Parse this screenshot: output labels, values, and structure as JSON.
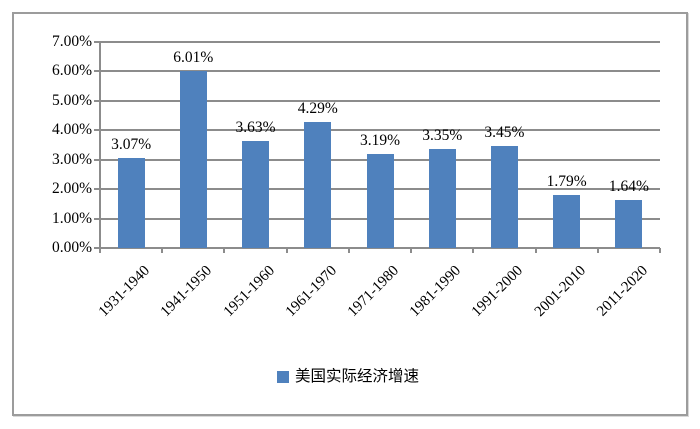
{
  "chart_data": {
    "type": "bar",
    "categories": [
      "1931-1940",
      "1941-1950",
      "1951-1960",
      "1961-1970",
      "1971-1980",
      "1981-1990",
      "1991-2000",
      "2001-2010",
      "2011-2020"
    ],
    "values": [
      3.07,
      6.01,
      3.63,
      4.29,
      3.19,
      3.35,
      3.45,
      1.79,
      1.64
    ],
    "data_labels": [
      "3.07%",
      "6.01%",
      "3.63%",
      "4.29%",
      "3.19%",
      "3.35%",
      "3.45%",
      "1.79%",
      "1.64%"
    ],
    "title": "",
    "xlabel": "",
    "ylabel": "",
    "ylim": [
      0,
      7
    ],
    "y_tick_step": 1,
    "y_tick_labels": [
      "0.00%",
      "1.00%",
      "2.00%",
      "3.00%",
      "4.00%",
      "5.00%",
      "6.00%",
      "7.00%"
    ],
    "grid": true,
    "legend": {
      "label": "美国实际经济增速",
      "position": "bottom",
      "swatch_color": "#4f81bd"
    },
    "colors": {
      "bar": "#4f81bd",
      "gridline": "#8c8c8c",
      "axis": "#8c8c8c",
      "frame_border": "#9c9c9c",
      "text": "#000000"
    }
  }
}
